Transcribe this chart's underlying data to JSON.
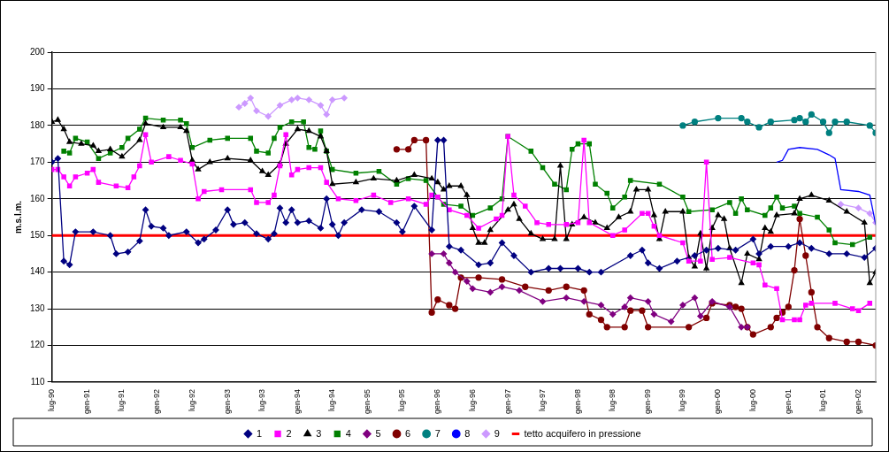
{
  "chart_data": {
    "type": "line",
    "ylabel": "m.s.l.m.",
    "legend": "bottom",
    "grid": "y",
    "xlim": [
      "1990-07",
      "2002-04"
    ],
    "xticks": [
      {
        "value": "1990-07",
        "label": "lug-90"
      },
      {
        "value": "1991-01",
        "label": "gen-91"
      },
      {
        "value": "1991-07",
        "label": "lug-91"
      },
      {
        "value": "1992-01",
        "label": "gen-92"
      },
      {
        "value": "1992-07",
        "label": "lug-92"
      },
      {
        "value": "1993-01",
        "label": "gen-93"
      },
      {
        "value": "1993-07",
        "label": "lug-93"
      },
      {
        "value": "1994-01",
        "label": "gen-94"
      },
      {
        "value": "1994-07",
        "label": "lug-94"
      },
      {
        "value": "1995-01",
        "label": "gen-95"
      },
      {
        "value": "1995-07",
        "label": "lug-95"
      },
      {
        "value": "1996-01",
        "label": "gen-96"
      },
      {
        "value": "1996-07",
        "label": "lug-96"
      },
      {
        "value": "1997-01",
        "label": "gen-97"
      },
      {
        "value": "1997-07",
        "label": "lug-97"
      },
      {
        "value": "1998-01",
        "label": "gen-98"
      },
      {
        "value": "1998-07",
        "label": "lug-98"
      },
      {
        "value": "1999-01",
        "label": "gen-99"
      },
      {
        "value": "1999-07",
        "label": "lug-99"
      },
      {
        "value": "2000-01",
        "label": "gen-00"
      },
      {
        "value": "2000-07",
        "label": "lug-00"
      },
      {
        "value": "2001-01",
        "label": "gen-01"
      },
      {
        "value": "2001-07",
        "label": "lug-01"
      },
      {
        "value": "2002-01",
        "label": "gen-02"
      }
    ],
    "ylim": [
      110,
      200
    ],
    "yticks": [
      110,
      120,
      130,
      140,
      150,
      160,
      170,
      180,
      190,
      200
    ],
    "ref_lines": [
      {
        "axis": "y",
        "value": 150,
        "label": "tetto acquifero in pressione",
        "color": "#ff0000"
      }
    ],
    "series": [
      {
        "name": "1",
        "color": "#000080",
        "marker": "diamond",
        "x": [
          "1990-07",
          "1990-08",
          "1990-09",
          "1990-10",
          "1990-11",
          "1991-02",
          "1991-05",
          "1991-06",
          "1991-08",
          "1991-10",
          "1991-11",
          "1991-12",
          "1992-02",
          "1992-03",
          "1992-06",
          "1992-08",
          "1992-09",
          "1992-11",
          "1993-01",
          "1993-02",
          "1993-04",
          "1993-06",
          "1993-08",
          "1993-09",
          "1993-10",
          "1993-11",
          "1993-12",
          "1994-01",
          "1994-03",
          "1994-05",
          "1994-06",
          "1994-07",
          "1994-08",
          "1994-09",
          "1994-12",
          "1995-03",
          "1995-06",
          "1995-07",
          "1995-09",
          "1995-12",
          "1996-01",
          "1996-02",
          "1996-03",
          "1996-05",
          "1996-08",
          "1996-10",
          "1996-12",
          "1997-02",
          "1997-05",
          "1997-08",
          "1997-10",
          "1998-01",
          "1998-03",
          "1998-05",
          "1998-10",
          "1998-12",
          "1999-01",
          "1999-03",
          "1999-06",
          "1999-09",
          "1999-11",
          "2000-01",
          "2000-04",
          "2000-07",
          "2000-08",
          "2000-10",
          "2001-01",
          "2001-03",
          "2001-05",
          "2001-08",
          "2001-11",
          "2002-02",
          "2002-04"
        ],
        "values": [
          170,
          171,
          143,
          142,
          151,
          151,
          150,
          145,
          145.5,
          148.5,
          157,
          152.5,
          152,
          150,
          151,
          148,
          149,
          151.5,
          157,
          153,
          153.5,
          150.5,
          149,
          150.5,
          157.5,
          153.5,
          157,
          153.5,
          154,
          152,
          160,
          153,
          150,
          153.5,
          157,
          156.5,
          153.5,
          151,
          158,
          151.5,
          176,
          176,
          147,
          146,
          142,
          142.5,
          148,
          144.5,
          140,
          141,
          141,
          141,
          140,
          140,
          144.5,
          146,
          142.5,
          141,
          143,
          144.5,
          146,
          146.5,
          146,
          149,
          145,
          147,
          147,
          148,
          146.5,
          145,
          145,
          144,
          146.5
        ]
      },
      {
        "name": "2",
        "color": "#ff00ff",
        "marker": "square",
        "x": [
          "1990-07",
          "1990-08",
          "1990-09",
          "1990-10",
          "1990-11",
          "1991-01",
          "1991-02",
          "1991-03",
          "1991-06",
          "1991-08",
          "1991-09",
          "1991-10",
          "1991-11",
          "1991-12",
          "1992-03",
          "1992-05",
          "1992-07",
          "1992-08",
          "1992-09",
          "1992-12",
          "1993-05",
          "1993-06",
          "1993-08",
          "1993-09",
          "1993-10",
          "1993-11",
          "1993-12",
          "1994-01",
          "1994-03",
          "1994-05",
          "1994-06",
          "1994-08",
          "1994-11",
          "1995-02",
          "1995-05",
          "1995-08",
          "1995-11",
          "1995-12",
          "1996-01",
          "1996-03",
          "1996-06",
          "1996-08",
          "1996-11",
          "1996-12",
          "1997-01",
          "1997-02",
          "1997-04",
          "1997-06",
          "1997-08",
          "1997-11",
          "1998-01",
          "1998-02",
          "1998-03",
          "1998-07",
          "1998-09",
          "1998-12",
          "1999-01",
          "1999-02",
          "1999-03",
          "1999-07",
          "1999-08",
          "1999-10",
          "1999-11",
          "1999-12",
          "2000-03",
          "2000-07",
          "2000-08",
          "2000-09",
          "2000-11",
          "2000-12",
          "2001-02",
          "2001-03",
          "2001-04",
          "2001-05",
          "2001-09",
          "2001-12",
          "2002-01",
          "2002-03"
        ],
        "values": [
          168,
          168,
          166,
          163.5,
          166,
          167,
          168,
          164.5,
          163.5,
          163,
          166,
          169,
          177.5,
          170,
          171.5,
          170.5,
          169.5,
          160,
          162,
          162.5,
          162.5,
          159,
          159,
          161,
          169,
          177.5,
          166.5,
          168,
          168.5,
          168.5,
          164.5,
          160,
          159.5,
          161,
          159,
          160,
          158.5,
          161,
          160.5,
          157,
          155.5,
          152,
          154.5,
          155.5,
          177,
          161,
          158,
          153.5,
          153,
          153,
          153.5,
          176,
          153.5,
          150,
          151.5,
          156,
          156,
          152.5,
          150,
          148,
          143,
          143,
          170,
          143.5,
          144,
          142.5,
          142,
          136.5,
          135.5,
          127,
          127,
          127,
          131,
          131.5,
          131.5,
          130,
          129.5,
          131.5
        ]
      },
      {
        "name": "3",
        "color": "#000000",
        "marker": "triangle",
        "x": [
          "1990-07",
          "1990-08",
          "1990-09",
          "1990-10",
          "1990-12",
          "1991-02",
          "1991-03",
          "1991-05",
          "1991-07",
          "1991-10",
          "1991-11",
          "1992-02",
          "1992-05",
          "1992-06",
          "1992-07",
          "1992-08",
          "1992-10",
          "1993-01",
          "1993-05",
          "1993-07",
          "1993-08",
          "1993-10",
          "1993-11",
          "1994-01",
          "1994-03",
          "1994-05",
          "1994-06",
          "1994-07",
          "1994-11",
          "1995-02",
          "1995-06",
          "1995-09",
          "1995-12",
          "1996-01",
          "1996-02",
          "1996-03",
          "1996-05",
          "1996-06",
          "1996-07",
          "1996-08",
          "1996-09",
          "1996-10",
          "1997-01",
          "1997-02",
          "1997-03",
          "1997-05",
          "1997-07",
          "1997-09",
          "1997-10",
          "1997-11",
          "1997-12",
          "1998-02",
          "1998-04",
          "1998-06",
          "1998-08",
          "1998-10",
          "1998-11",
          "1999-01",
          "1999-02",
          "1999-03",
          "1999-04",
          "1999-07",
          "1999-08",
          "1999-09",
          "1999-10",
          "1999-11",
          "1999-12",
          "2000-01",
          "2000-02",
          "2000-03",
          "2000-05",
          "2000-06",
          "2000-08",
          "2000-09",
          "2000-10",
          "2000-11",
          "2001-02",
          "2001-03",
          "2001-05",
          "2001-08",
          "2001-11",
          "2002-02",
          "2002-03",
          "2002-04"
        ],
        "values": [
          181,
          181.5,
          179,
          175.5,
          175,
          174.5,
          173,
          173.5,
          171.5,
          176,
          180.5,
          179.5,
          179.5,
          178.5,
          170.5,
          168,
          170,
          171,
          170.5,
          167.5,
          166.5,
          169.5,
          175,
          179,
          178.5,
          177,
          173,
          164,
          164.5,
          165.5,
          165,
          166.5,
          165.5,
          164.5,
          162.5,
          163.5,
          163.5,
          161,
          152,
          148,
          148,
          151.5,
          157,
          158.5,
          154.5,
          150.5,
          149,
          149,
          169,
          149,
          153,
          155,
          153.5,
          152,
          155,
          156.5,
          162.5,
          162.5,
          155.5,
          149,
          156.5,
          156.5,
          144,
          141.5,
          150.5,
          141,
          152,
          155.5,
          154.5,
          146.5,
          137,
          145,
          143.5,
          152,
          151,
          155.5,
          156,
          160,
          161,
          159.5,
          156.5,
          153.5,
          137,
          140
        ]
      },
      {
        "name": "4",
        "color": "#008000",
        "marker": "square",
        "x": [
          "1990-09",
          "1990-10",
          "1990-11",
          "1991-01",
          "1991-03",
          "1991-05",
          "1991-07",
          "1991-08",
          "1991-10",
          "1991-11",
          "1992-02",
          "1992-05",
          "1992-06",
          "1992-07",
          "1992-10",
          "1993-01",
          "1993-05",
          "1993-06",
          "1993-08",
          "1993-09",
          "1993-10",
          "1993-12",
          "1994-02",
          "1994-03",
          "1994-04",
          "1994-05",
          "1994-06",
          "1994-07",
          "1994-11",
          "1995-03",
          "1995-06",
          "1995-08",
          "1995-11",
          "1996-01",
          "1996-02",
          "1996-05",
          "1996-07",
          "1996-10",
          "1996-12",
          "1997-01",
          "1997-05",
          "1997-07",
          "1997-09",
          "1997-11",
          "1997-12",
          "1998-01",
          "1998-03",
          "1998-04",
          "1998-06",
          "1998-07",
          "1998-09",
          "1998-10",
          "1999-03",
          "1999-07",
          "1999-08",
          "1999-12",
          "2000-03",
          "2000-04",
          "2000-05",
          "2000-06",
          "2000-09",
          "2000-10",
          "2000-11",
          "2000-12",
          "2001-02",
          "2001-03",
          "2001-06",
          "2001-08",
          "2001-09",
          "2001-12",
          "2002-03"
        ],
        "values": [
          173,
          172.5,
          176.5,
          175.5,
          171,
          172.5,
          174,
          176.5,
          179,
          182,
          181.5,
          181.5,
          180.5,
          174,
          176,
          176.5,
          176.5,
          173,
          172.5,
          176.5,
          179.5,
          181,
          181,
          174,
          173.5,
          178.5,
          173,
          168,
          167,
          167.5,
          164,
          165.5,
          165,
          160.5,
          158.5,
          158,
          155.5,
          157.5,
          160,
          177,
          173,
          168.5,
          164,
          162.5,
          173.5,
          175,
          175,
          164,
          161.5,
          157.5,
          160.5,
          165,
          164,
          160.5,
          156.5,
          157,
          159,
          156,
          160,
          157,
          155.5,
          157.5,
          160.5,
          157.5,
          158,
          156,
          155,
          151.5,
          148,
          147.5,
          149.5
        ]
      },
      {
        "name": "5",
        "color": "#800080",
        "marker": "diamond",
        "x": [
          "1995-12",
          "1996-02",
          "1996-03",
          "1996-04",
          "1996-06",
          "1996-07",
          "1996-10",
          "1996-12",
          "1997-03",
          "1997-07",
          "1997-11",
          "1998-02",
          "1998-05",
          "1998-07",
          "1998-09",
          "1998-10",
          "1999-01",
          "1999-02",
          "1999-05",
          "1999-07",
          "1999-09",
          "1999-10",
          "1999-12",
          "2000-03",
          "2000-05",
          "2000-06"
        ],
        "values": [
          145,
          145,
          142.5,
          140,
          137.5,
          135.5,
          134.5,
          136,
          135,
          132,
          133,
          132,
          131,
          128.5,
          130.5,
          133,
          132,
          128.5,
          126.5,
          131,
          133,
          128,
          132,
          130.5,
          125,
          125
        ]
      },
      {
        "name": "6",
        "color": "#800000",
        "marker": "circle",
        "x": [
          "1995-06",
          "1995-08",
          "1995-09",
          "1995-11",
          "1995-12",
          "1996-01",
          "1996-03",
          "1996-04",
          "1996-05",
          "1996-08",
          "1996-12",
          "1997-04",
          "1997-08",
          "1997-11",
          "1998-02",
          "1998-03",
          "1998-05",
          "1998-06",
          "1998-09",
          "1998-10",
          "1998-12",
          "1999-01",
          "1999-08",
          "1999-11",
          "1999-12",
          "2000-03",
          "2000-04",
          "2000-05",
          "2000-06",
          "2000-07",
          "2000-10",
          "2000-11",
          "2000-12",
          "2001-01",
          "2001-02",
          "2001-03",
          "2001-04",
          "2001-05",
          "2001-06",
          "2001-08",
          "2001-11",
          "2002-01",
          "2002-04"
        ],
        "values": [
          173.5,
          173.5,
          176,
          176,
          129,
          132.5,
          131,
          130,
          138.5,
          138.5,
          138,
          136,
          135,
          136,
          135,
          128.5,
          127,
          125,
          125,
          129.5,
          129.5,
          125,
          125,
          127.5,
          131.5,
          131,
          130.5,
          130,
          125,
          123,
          125,
          127.5,
          129,
          130.5,
          140.5,
          154.5,
          144.5,
          134.5,
          125,
          122,
          121,
          121,
          120
        ]
      },
      {
        "name": "7",
        "color": "#008080",
        "marker": "circle",
        "x": [
          "1999-07",
          "1999-09",
          "2000-01",
          "2000-05",
          "2000-06",
          "2000-08",
          "2000-10",
          "2001-02",
          "2001-03",
          "2001-04",
          "2001-05",
          "2001-07",
          "2001-08",
          "2001-09",
          "2001-11",
          "2002-03",
          "2002-04"
        ],
        "values": [
          180,
          181,
          182,
          182,
          181,
          179.5,
          181,
          181.5,
          182,
          181,
          183,
          181,
          178,
          181,
          181,
          180,
          178
        ]
      },
      {
        "name": "8",
        "color": "#0000ff",
        "marker": "none",
        "x": [
          "2000-11",
          "2000-12",
          "2001-01",
          "2001-03",
          "2001-06",
          "2001-08",
          "2001-09",
          "2001-10",
          "2002-01",
          "2002-03",
          "2002-04"
        ],
        "values": [
          170,
          170.5,
          173.5,
          174,
          173.5,
          172,
          171,
          162.5,
          162,
          161,
          153
        ]
      },
      {
        "name": "9",
        "color": "#cc99ff",
        "marker": "diamond",
        "x": [
          "1993-03",
          "1993-04",
          "1993-05",
          "1993-06",
          "1993-08",
          "1993-10",
          "1993-12",
          "1994-01",
          "1994-03",
          "1994-05",
          "1994-06",
          "1994-07",
          "1994-09",
          "1998-01",
          "2001-10",
          "2002-01",
          "2002-03",
          "2002-04"
        ],
        "values": [
          185,
          186,
          187.5,
          184,
          182.5,
          185.5,
          187,
          187.5,
          187,
          185.5,
          183,
          187,
          187.5,
          null,
          158.5,
          157.5,
          156,
          153.5
        ]
      }
    ]
  }
}
